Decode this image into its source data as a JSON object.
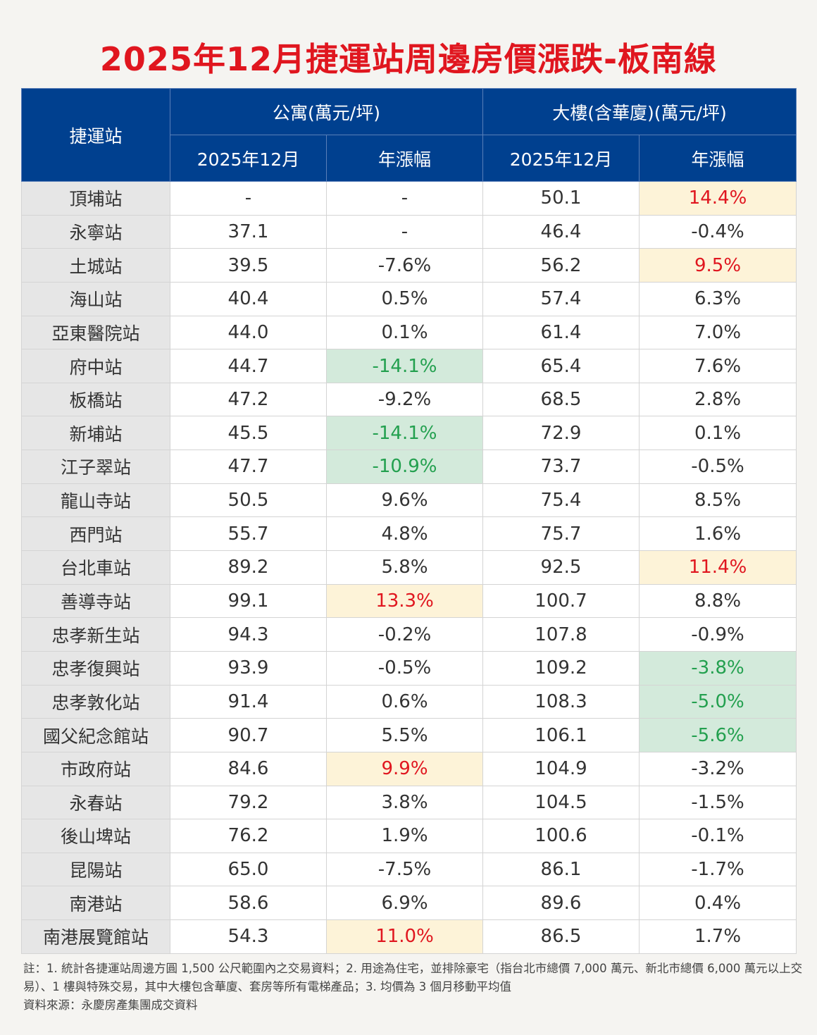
{
  "title": "2025年12月捷運站周邊房價漲跌-板南線",
  "headers": {
    "station": "捷運站",
    "apartment": "公寓(萬元/坪)",
    "building": "大樓(含華廈)(萬元/坪)",
    "month": "2025年12月",
    "yoy": "年漲幅"
  },
  "rows": [
    {
      "station": "頂埔站",
      "apt": "-",
      "apt_yoy": "-",
      "bld": "50.1",
      "bld_yoy": "14.4%",
      "apt_hl": "",
      "bld_hl": "up"
    },
    {
      "station": "永寧站",
      "apt": "37.1",
      "apt_yoy": "-",
      "bld": "46.4",
      "bld_yoy": "-0.4%",
      "apt_hl": "",
      "bld_hl": ""
    },
    {
      "station": "土城站",
      "apt": "39.5",
      "apt_yoy": "-7.6%",
      "bld": "56.2",
      "bld_yoy": "9.5%",
      "apt_hl": "",
      "bld_hl": "up"
    },
    {
      "station": "海山站",
      "apt": "40.4",
      "apt_yoy": "0.5%",
      "bld": "57.4",
      "bld_yoy": "6.3%",
      "apt_hl": "",
      "bld_hl": ""
    },
    {
      "station": "亞東醫院站",
      "apt": "44.0",
      "apt_yoy": "0.1%",
      "bld": "61.4",
      "bld_yoy": "7.0%",
      "apt_hl": "",
      "bld_hl": ""
    },
    {
      "station": "府中站",
      "apt": "44.7",
      "apt_yoy": "-14.1%",
      "bld": "65.4",
      "bld_yoy": "7.6%",
      "apt_hl": "down",
      "bld_hl": ""
    },
    {
      "station": "板橋站",
      "apt": "47.2",
      "apt_yoy": "-9.2%",
      "bld": "68.5",
      "bld_yoy": "2.8%",
      "apt_hl": "",
      "bld_hl": ""
    },
    {
      "station": "新埔站",
      "apt": "45.5",
      "apt_yoy": "-14.1%",
      "bld": "72.9",
      "bld_yoy": "0.1%",
      "apt_hl": "down",
      "bld_hl": ""
    },
    {
      "station": "江子翠站",
      "apt": "47.7",
      "apt_yoy": "-10.9%",
      "bld": "73.7",
      "bld_yoy": "-0.5%",
      "apt_hl": "down",
      "bld_hl": ""
    },
    {
      "station": "龍山寺站",
      "apt": "50.5",
      "apt_yoy": "9.6%",
      "bld": "75.4",
      "bld_yoy": "8.5%",
      "apt_hl": "",
      "bld_hl": ""
    },
    {
      "station": "西門站",
      "apt": "55.7",
      "apt_yoy": "4.8%",
      "bld": "75.7",
      "bld_yoy": "1.6%",
      "apt_hl": "",
      "bld_hl": ""
    },
    {
      "station": "台北車站",
      "apt": "89.2",
      "apt_yoy": "5.8%",
      "bld": "92.5",
      "bld_yoy": "11.4%",
      "apt_hl": "",
      "bld_hl": "up"
    },
    {
      "station": "善導寺站",
      "apt": "99.1",
      "apt_yoy": "13.3%",
      "bld": "100.7",
      "bld_yoy": "8.8%",
      "apt_hl": "up",
      "bld_hl": ""
    },
    {
      "station": "忠孝新生站",
      "apt": "94.3",
      "apt_yoy": "-0.2%",
      "bld": "107.8",
      "bld_yoy": "-0.9%",
      "apt_hl": "",
      "bld_hl": ""
    },
    {
      "station": "忠孝復興站",
      "apt": "93.9",
      "apt_yoy": "-0.5%",
      "bld": "109.2",
      "bld_yoy": "-3.8%",
      "apt_hl": "",
      "bld_hl": "down"
    },
    {
      "station": "忠孝敦化站",
      "apt": "91.4",
      "apt_yoy": "0.6%",
      "bld": "108.3",
      "bld_yoy": "-5.0%",
      "apt_hl": "",
      "bld_hl": "down"
    },
    {
      "station": "國父紀念館站",
      "apt": "90.7",
      "apt_yoy": "5.5%",
      "bld": "106.1",
      "bld_yoy": "-5.6%",
      "apt_hl": "",
      "bld_hl": "down"
    },
    {
      "station": "市政府站",
      "apt": "84.6",
      "apt_yoy": "9.9%",
      "bld": "104.9",
      "bld_yoy": "-3.2%",
      "apt_hl": "up",
      "bld_hl": ""
    },
    {
      "station": "永春站",
      "apt": "79.2",
      "apt_yoy": "3.8%",
      "bld": "104.5",
      "bld_yoy": "-1.5%",
      "apt_hl": "",
      "bld_hl": ""
    },
    {
      "station": "後山埤站",
      "apt": "76.2",
      "apt_yoy": "1.9%",
      "bld": "100.6",
      "bld_yoy": "-0.1%",
      "apt_hl": "",
      "bld_hl": ""
    },
    {
      "station": "昆陽站",
      "apt": "65.0",
      "apt_yoy": "-7.5%",
      "bld": "86.1",
      "bld_yoy": "-1.7%",
      "apt_hl": "",
      "bld_hl": ""
    },
    {
      "station": "南港站",
      "apt": "58.6",
      "apt_yoy": "6.9%",
      "bld": "89.6",
      "bld_yoy": "0.4%",
      "apt_hl": "",
      "bld_hl": ""
    },
    {
      "station": "南港展覽館站",
      "apt": "54.3",
      "apt_yoy": "11.0%",
      "bld": "86.5",
      "bld_yoy": "1.7%",
      "apt_hl": "up",
      "bld_hl": ""
    }
  ],
  "notes": {
    "line1": "註：1. 統計各捷運站周邊方圓 1,500 公尺範圍內之交易資料；2. 用途為住宅，並排除豪宅（指台北市總價 7,000 萬元、新北市總價 6,000 萬元以上交易）、1 樓與特殊交易，其中大樓包含華廈、套房等所有電梯產品；3. 均價為 3 個月移動平均值",
    "source": "資料來源：永慶房產集團成交資料"
  }
}
